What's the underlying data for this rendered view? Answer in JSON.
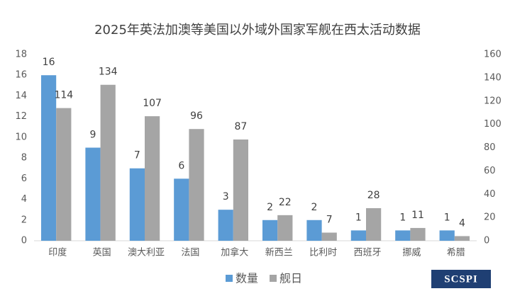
{
  "chart_data": {
    "type": "bar",
    "title": "2025年英法加澳等美国以外域外国家军舰在西太活动数据",
    "categories": [
      "印度",
      "英国",
      "澳大利亚",
      "法国",
      "加拿大",
      "新西兰",
      "比利时",
      "西班牙",
      "挪威",
      "希腊"
    ],
    "series": [
      {
        "name": "数量",
        "color": "#5b9bd5",
        "values": [
          16,
          9,
          7,
          6,
          3,
          2,
          2,
          1,
          1,
          1
        ]
      },
      {
        "name": "舰日",
        "color": "#a5a5a5",
        "axis": "y2",
        "values": [
          114,
          134,
          107,
          96,
          87,
          22,
          7,
          28,
          11,
          4
        ]
      }
    ],
    "ylim": [
      0,
      18
    ],
    "yticks": [
      0,
      2,
      4,
      6,
      8,
      10,
      12,
      14,
      16,
      18
    ],
    "y2lim": [
      0,
      160
    ],
    "y2ticks": [
      0,
      20,
      40,
      60,
      80,
      100,
      120,
      140,
      160
    ],
    "grid": false,
    "legend": "bottom"
  },
  "logo": "SCSPI"
}
